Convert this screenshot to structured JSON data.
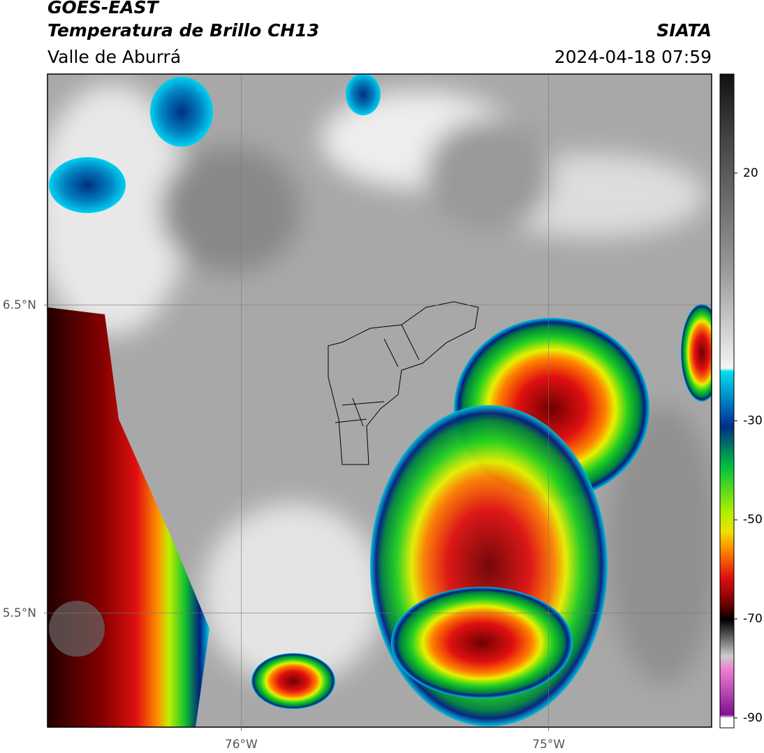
{
  "header": {
    "title": "GOES-EAST",
    "subtitle": "Temperatura de Brillo CH13",
    "region": "Valle de Aburrá",
    "source": "SIATA",
    "datetime": "2024-04-18 07:59"
  },
  "map": {
    "lon_range": [
      -76.63,
      -74.47
    ],
    "lat_range": [
      5.13,
      7.25
    ],
    "lon_ticks": [
      {
        "value": -76,
        "label": "76°W"
      },
      {
        "value": -75,
        "label": "75°W"
      }
    ],
    "lat_ticks": [
      {
        "value": 6.5,
        "label": "6.5°N"
      },
      {
        "value": 5.5,
        "label": "5.5°N"
      }
    ],
    "grid": true
  },
  "colorbar": {
    "range": [
      -92,
      40
    ],
    "ticks": [
      20,
      -30,
      -50,
      -70,
      -90
    ]
  }
}
